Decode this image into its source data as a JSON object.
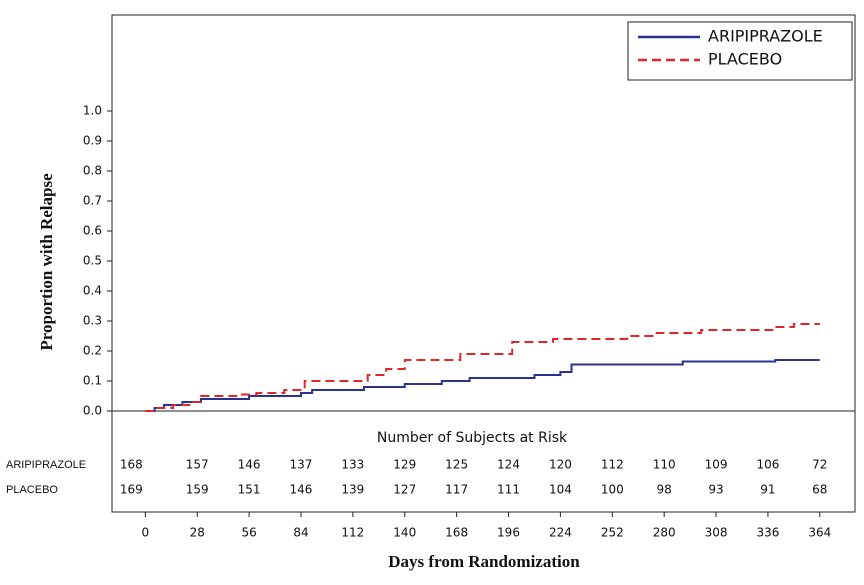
{
  "chart_data": {
    "type": "step",
    "y_label": "Proportion with Relapse",
    "x_label": "Days from Randomization",
    "xlim": [
      -18,
      383
    ],
    "ylim": [
      0,
      1.32
    ],
    "xticks": [
      0,
      28,
      56,
      84,
      112,
      140,
      168,
      196,
      224,
      252,
      280,
      308,
      336,
      364
    ],
    "yticks": [
      {
        "value": 0,
        "label": "0.0"
      },
      0.1,
      0.2,
      0.3,
      0.4,
      0.5,
      0.6,
      0.7,
      0.8,
      0.9,
      {
        "value": 1,
        "label": "1.0"
      }
    ],
    "legend": "top-right",
    "series": [
      {
        "name": "ARIPIPRAZOLE",
        "color": "#2b3190",
        "dash": false,
        "x": [
          0,
          5,
          5,
          10,
          10,
          20,
          20,
          30,
          30,
          56,
          56,
          84,
          84,
          90,
          90,
          118,
          118,
          140,
          140,
          160,
          160,
          175,
          175,
          210,
          210,
          224,
          224,
          230,
          230,
          290,
          290,
          340,
          340,
          364
        ],
        "values": [
          0,
          0,
          0.01,
          0.01,
          0.02,
          0.02,
          0.03,
          0.03,
          0.04,
          0.04,
          0.05,
          0.05,
          0.06,
          0.06,
          0.07,
          0.07,
          0.08,
          0.08,
          0.09,
          0.09,
          0.1,
          0.1,
          0.11,
          0.11,
          0.12,
          0.12,
          0.13,
          0.13,
          0.155,
          0.155,
          0.165,
          0.165,
          0.17,
          0.17
        ]
      },
      {
        "name": "PLACEBO",
        "color": "#e0262a",
        "dash": true,
        "x": [
          0,
          5,
          5,
          15,
          15,
          25,
          25,
          30,
          30,
          50,
          50,
          60,
          60,
          75,
          75,
          86,
          86,
          120,
          120,
          130,
          130,
          140,
          140,
          170,
          170,
          198,
          198,
          220,
          220,
          260,
          260,
          276,
          276,
          300,
          300,
          340,
          340,
          350,
          350,
          364
        ],
        "values": [
          0,
          0,
          0.01,
          0.01,
          0.02,
          0.02,
          0.03,
          0.03,
          0.05,
          0.05,
          0.055,
          0.055,
          0.06,
          0.06,
          0.07,
          0.07,
          0.1,
          0.1,
          0.12,
          0.12,
          0.14,
          0.14,
          0.17,
          0.17,
          0.19,
          0.19,
          0.23,
          0.23,
          0.24,
          0.24,
          0.25,
          0.25,
          0.26,
          0.26,
          0.27,
          0.27,
          0.28,
          0.28,
          0.29,
          0.29
        ]
      }
    ],
    "risk_table": {
      "title": "Number of Subjects at Risk",
      "rows": [
        {
          "label": "ARIPIPRAZOLE",
          "values": [
            168,
            157,
            146,
            137,
            133,
            129,
            125,
            124,
            120,
            112,
            110,
            109,
            106,
            72
          ]
        },
        {
          "label": "PLACEBO",
          "values": [
            169,
            159,
            151,
            146,
            139,
            127,
            117,
            111,
            104,
            100,
            98,
            93,
            91,
            68
          ]
        }
      ]
    }
  }
}
